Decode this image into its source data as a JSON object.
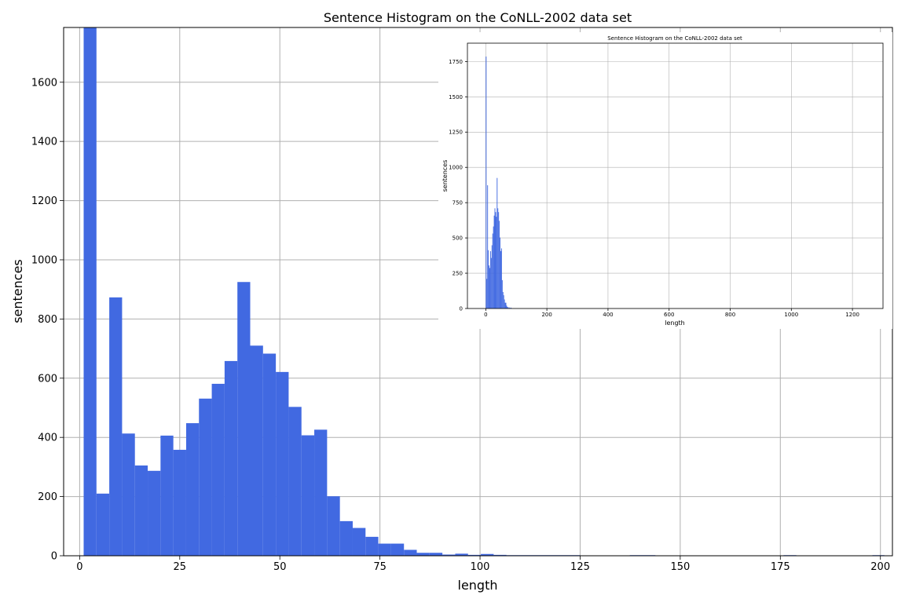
{
  "chart_data": [
    {
      "type": "bar",
      "title": "Sentence Histogram on the CoNLL-2002 data set",
      "xlabel": "length",
      "ylabel": "sentences",
      "xlim": [
        -4,
        203
      ],
      "ylim": [
        0,
        1785
      ],
      "xticks": [
        0,
        25,
        50,
        75,
        100,
        125,
        150,
        175,
        200
      ],
      "yticks": [
        0,
        200,
        400,
        600,
        800,
        1000,
        1200,
        1400,
        1600
      ],
      "grid": true,
      "bar_color": "#4169e1",
      "bins": [
        {
          "x0": 1,
          "x1": 4.2,
          "value": 1785
        },
        {
          "x0": 4.2,
          "x1": 7.4,
          "value": 210
        },
        {
          "x0": 7.4,
          "x1": 10.6,
          "value": 873
        },
        {
          "x0": 10.6,
          "x1": 13.8,
          "value": 413
        },
        {
          "x0": 13.8,
          "x1": 17,
          "value": 305
        },
        {
          "x0": 17,
          "x1": 20.2,
          "value": 287
        },
        {
          "x0": 20.2,
          "x1": 23.4,
          "value": 406
        },
        {
          "x0": 23.4,
          "x1": 26.6,
          "value": 358
        },
        {
          "x0": 26.6,
          "x1": 29.8,
          "value": 448
        },
        {
          "x0": 29.8,
          "x1": 33,
          "value": 531
        },
        {
          "x0": 33,
          "x1": 36.2,
          "value": 581
        },
        {
          "x0": 36.2,
          "x1": 39.4,
          "value": 658
        },
        {
          "x0": 39.4,
          "x1": 42.6,
          "value": 925
        },
        {
          "x0": 42.6,
          "x1": 45.8,
          "value": 710
        },
        {
          "x0": 45.8,
          "x1": 49,
          "value": 683
        },
        {
          "x0": 49,
          "x1": 52.2,
          "value": 621
        },
        {
          "x0": 52.2,
          "x1": 55.4,
          "value": 503
        },
        {
          "x0": 55.4,
          "x1": 58.6,
          "value": 407
        },
        {
          "x0": 58.6,
          "x1": 61.8,
          "value": 426
        },
        {
          "x0": 61.8,
          "x1": 65,
          "value": 201
        },
        {
          "x0": 65,
          "x1": 68.2,
          "value": 117
        },
        {
          "x0": 68.2,
          "x1": 71.4,
          "value": 94
        },
        {
          "x0": 71.4,
          "x1": 74.6,
          "value": 64
        },
        {
          "x0": 74.6,
          "x1": 77.8,
          "value": 41
        },
        {
          "x0": 77.8,
          "x1": 81,
          "value": 41
        },
        {
          "x0": 81,
          "x1": 84.2,
          "value": 20
        },
        {
          "x0": 84.2,
          "x1": 87.4,
          "value": 10
        },
        {
          "x0": 87.4,
          "x1": 90.6,
          "value": 10
        },
        {
          "x0": 90.6,
          "x1": 93.8,
          "value": 4
        },
        {
          "x0": 93.8,
          "x1": 97,
          "value": 7
        },
        {
          "x0": 97,
          "x1": 100.2,
          "value": 3
        },
        {
          "x0": 100.2,
          "x1": 103.4,
          "value": 6
        },
        {
          "x0": 103.4,
          "x1": 106.6,
          "value": 3
        },
        {
          "x0": 106.6,
          "x1": 125,
          "value": 2
        },
        {
          "x0": 137.4,
          "x1": 143.8,
          "value": 2
        },
        {
          "x0": 175.8,
          "x1": 179,
          "value": 2
        },
        {
          "x0": 198,
          "x1": 201,
          "value": 2
        }
      ]
    },
    {
      "type": "bar",
      "title": "Sentence Histogram on the CoNLL-2002 data set",
      "xlabel": "length",
      "ylabel": "sentences",
      "xlim": [
        -60,
        1300
      ],
      "ylim": [
        0,
        1880
      ],
      "xticks": [
        0,
        200,
        400,
        600,
        800,
        1000,
        1200
      ],
      "yticks": [
        0,
        250,
        500,
        750,
        1000,
        1250,
        1500,
        1750
      ],
      "grid": true,
      "bar_color": "#4169e1",
      "bins": [
        {
          "x0": 0,
          "x1": 2.4,
          "value": 1785
        },
        {
          "x0": 2.4,
          "x1": 4.8,
          "value": 210
        },
        {
          "x0": 4.8,
          "x1": 7.2,
          "value": 873
        },
        {
          "x0": 7.2,
          "x1": 9.6,
          "value": 413
        },
        {
          "x0": 9.6,
          "x1": 12,
          "value": 305
        },
        {
          "x0": 12,
          "x1": 14.4,
          "value": 287
        },
        {
          "x0": 14.4,
          "x1": 16.8,
          "value": 406
        },
        {
          "x0": 16.8,
          "x1": 19.2,
          "value": 358
        },
        {
          "x0": 19.2,
          "x1": 21.6,
          "value": 448
        },
        {
          "x0": 21.6,
          "x1": 24,
          "value": 531
        },
        {
          "x0": 24,
          "x1": 26.4,
          "value": 581
        },
        {
          "x0": 26.4,
          "x1": 28.8,
          "value": 658
        },
        {
          "x0": 28.8,
          "x1": 31.2,
          "value": 710
        },
        {
          "x0": 31.2,
          "x1": 33.6,
          "value": 683
        },
        {
          "x0": 33.6,
          "x1": 36,
          "value": 650
        },
        {
          "x0": 36,
          "x1": 38.4,
          "value": 925
        },
        {
          "x0": 38.4,
          "x1": 40.8,
          "value": 710
        },
        {
          "x0": 40.8,
          "x1": 43.2,
          "value": 683
        },
        {
          "x0": 43.2,
          "x1": 45.6,
          "value": 621
        },
        {
          "x0": 45.6,
          "x1": 48,
          "value": 503
        },
        {
          "x0": 48,
          "x1": 50.4,
          "value": 407
        },
        {
          "x0": 50.4,
          "x1": 52.8,
          "value": 426
        },
        {
          "x0": 52.8,
          "x1": 55.2,
          "value": 201
        },
        {
          "x0": 55.2,
          "x1": 57.6,
          "value": 117
        },
        {
          "x0": 57.6,
          "x1": 60,
          "value": 94
        },
        {
          "x0": 60,
          "x1": 62.4,
          "value": 64
        },
        {
          "x0": 62.4,
          "x1": 64.8,
          "value": 41
        },
        {
          "x0": 64.8,
          "x1": 67.2,
          "value": 41
        },
        {
          "x0": 67.2,
          "x1": 69.6,
          "value": 20
        },
        {
          "x0": 69.6,
          "x1": 72,
          "value": 10
        },
        {
          "x0": 72,
          "x1": 74.4,
          "value": 10
        },
        {
          "x0": 74.4,
          "x1": 76.8,
          "value": 4
        },
        {
          "x0": 76.8,
          "x1": 79.2,
          "value": 7
        },
        {
          "x0": 79.2,
          "x1": 81.6,
          "value": 3
        },
        {
          "x0": 81.6,
          "x1": 84,
          "value": 6
        }
      ]
    }
  ]
}
